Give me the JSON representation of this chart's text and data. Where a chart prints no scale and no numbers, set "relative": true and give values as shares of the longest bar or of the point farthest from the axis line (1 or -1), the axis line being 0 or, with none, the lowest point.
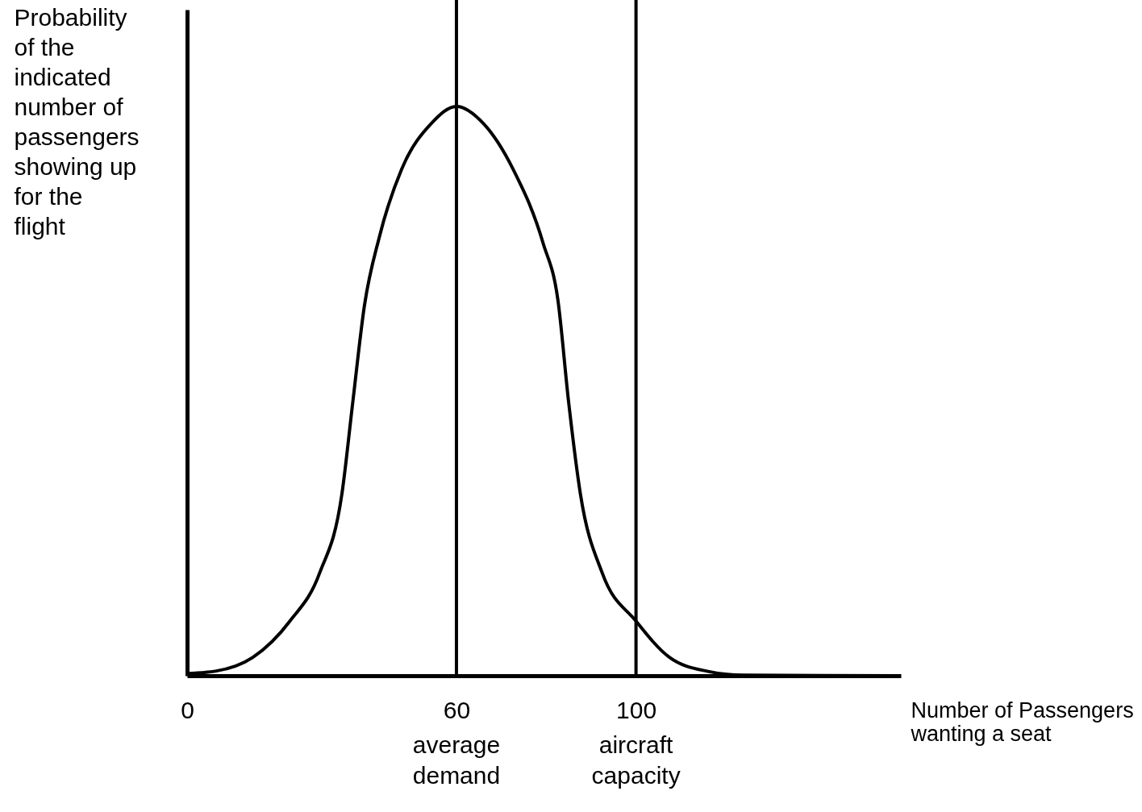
{
  "chart_data": {
    "type": "line",
    "relative": true,
    "xlabel": "Number of Passengers wanting a seat",
    "ylabel": "Probability of the indicated number of passengers showing up for the flight",
    "xlim": [
      0,
      159
    ],
    "xticks": [
      0,
      60,
      100
    ],
    "tick_labels": "x",
    "grid": false,
    "line_style": "solid",
    "marker": "none",
    "series": [
      {
        "color": "#000000",
        "x": [
          0,
          6.3,
          14.6,
          22.9,
          29.5,
          34.5,
          36.9,
          39.5,
          42.8,
          47.8,
          54.4,
          60,
          66,
          72.6,
          79.3,
          82.6,
          85,
          87.6,
          92.5,
          100,
          107.5,
          115.8,
          124,
          159
        ],
        "values": [
          0.004,
          0.008,
          0.032,
          0.096,
          0.18,
          0.32,
          0.48,
          0.65,
          0.77,
          0.89,
          0.97,
          1.0,
          0.97,
          0.89,
          0.76,
          0.66,
          0.48,
          0.32,
          0.18,
          0.096,
          0.032,
          0.008,
          0.001,
          0
        ]
      }
    ],
    "ref_lines": [
      {
        "axis": "x",
        "value": 60,
        "label": "average demand",
        "color": "#000000"
      },
      {
        "axis": "x",
        "value": 100,
        "label": "aircraft capacity",
        "color": "#000000"
      }
    ]
  }
}
